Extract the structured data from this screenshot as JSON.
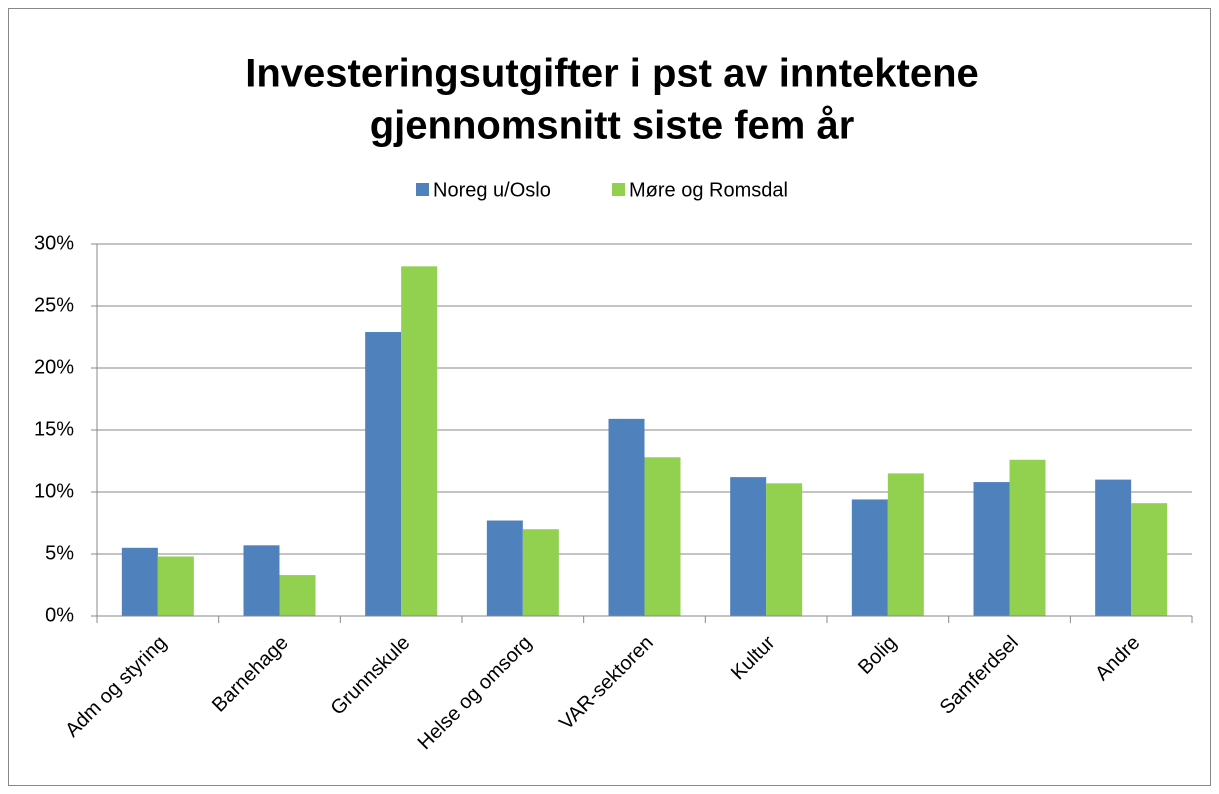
{
  "chart_data": {
    "type": "bar",
    "title": [
      "Investeringsutgifter i pst av inntektene",
      "gjennomsnitt siste fem år"
    ],
    "categories": [
      "Adm og styring",
      "Barnehage",
      "Grunnskule",
      "Helse og omsorg",
      "VAR-sektoren",
      "Kultur",
      "Bolig",
      "Samferdsel",
      "Andre"
    ],
    "series": [
      {
        "name": "Noreg u/Oslo",
        "color": "#4f81bd",
        "values": [
          5.5,
          5.7,
          22.9,
          7.7,
          15.9,
          11.2,
          9.4,
          10.8,
          11.0
        ]
      },
      {
        "name": "Møre og Romsdal",
        "color": "#92d050",
        "values": [
          4.8,
          3.3,
          28.2,
          7.0,
          12.8,
          10.7,
          11.5,
          12.6,
          9.1
        ]
      }
    ],
    "ylim": [
      0,
      30
    ],
    "yticks": [
      {
        "value": 0,
        "label": "0%"
      },
      {
        "value": 5,
        "label": "5%"
      },
      {
        "value": 10,
        "label": "10%"
      },
      {
        "value": 15,
        "label": "15%"
      },
      {
        "value": 20,
        "label": "20%"
      },
      {
        "value": 25,
        "label": "25%"
      },
      {
        "value": 30,
        "label": "30%"
      }
    ],
    "grid": true,
    "legend": "top"
  }
}
